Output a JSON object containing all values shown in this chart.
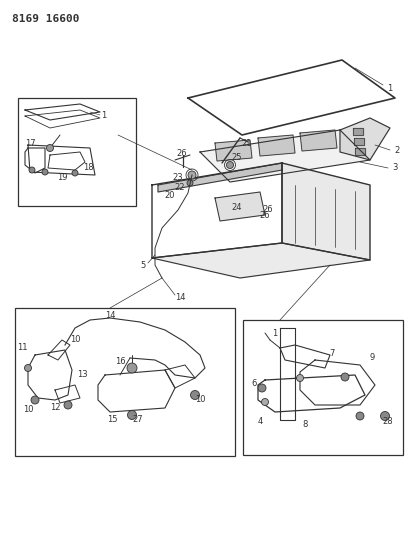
{
  "title": "8169 16600",
  "bg_color": "#ffffff",
  "line_color": "#333333",
  "title_fontsize": 8,
  "fig_width": 4.1,
  "fig_height": 5.33,
  "dpi": 100
}
